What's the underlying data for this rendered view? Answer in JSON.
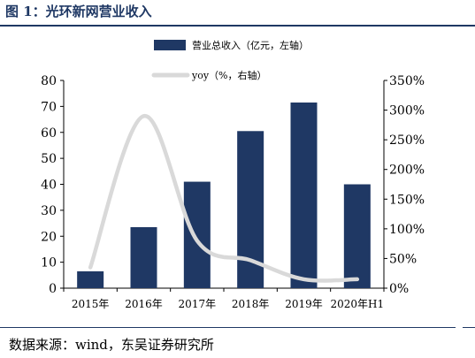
{
  "figure": {
    "title": "图 1：光环新网营业收入",
    "source": "数据来源：wind，东吴证券研究所"
  },
  "chart_data": {
    "type": "bar",
    "categories": [
      "2015年",
      "2016年",
      "2017年",
      "2018年",
      "2019年",
      "2020年H1"
    ],
    "series": [
      {
        "name": "营业总收入（亿元，左轴）",
        "type": "bar",
        "axis": "left",
        "color": "#1f3864",
        "values": [
          6.5,
          23.5,
          41,
          60.5,
          71.5,
          40
        ]
      },
      {
        "name": "yoy（%，右轴）",
        "type": "line",
        "axis": "right",
        "color": "#d9d9d9",
        "values": [
          35,
          290,
          80,
          47,
          15,
          15
        ]
      }
    ],
    "y_left": {
      "min": 0,
      "max": 80,
      "step": 10,
      "ticks": [
        "0",
        "10",
        "20",
        "30",
        "40",
        "50",
        "60",
        "70",
        "80"
      ]
    },
    "y_right": {
      "min": 0,
      "max": 350,
      "step": 50,
      "ticks": [
        "0%",
        "50%",
        "100%",
        "150%",
        "200%",
        "250%",
        "300%",
        "350%"
      ]
    },
    "legend": "top-center",
    "grid": false
  }
}
